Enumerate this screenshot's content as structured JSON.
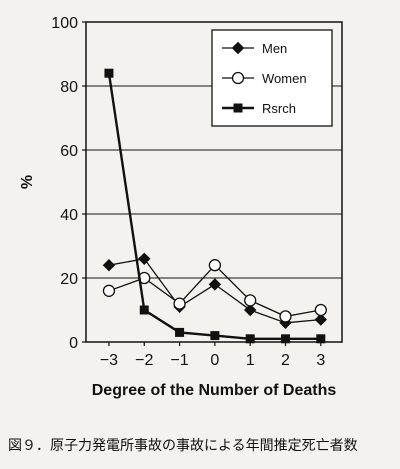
{
  "chart_data": {
    "type": "line",
    "x": [
      -3,
      -2,
      -1,
      0,
      1,
      2,
      3
    ],
    "xlabel": "Degree of the Number of Deaths",
    "ylabel": "%",
    "ylim": [
      0,
      100
    ],
    "yticks": [
      0,
      20,
      40,
      60,
      80,
      100
    ],
    "grid": true,
    "legend_position": "top-right",
    "series": [
      {
        "name": "Men",
        "marker": "diamond",
        "values": [
          24,
          26,
          11,
          18,
          10,
          6,
          7
        ]
      },
      {
        "name": "Women",
        "marker": "circle",
        "values": [
          16,
          20,
          12,
          24,
          13,
          8,
          10
        ]
      },
      {
        "name": "Rsrch",
        "marker": "square",
        "values": [
          84,
          10,
          3,
          2,
          1,
          1,
          1
        ]
      }
    ]
  },
  "caption": "図９．原子力発電所事故の事故による年間推定死亡者数"
}
